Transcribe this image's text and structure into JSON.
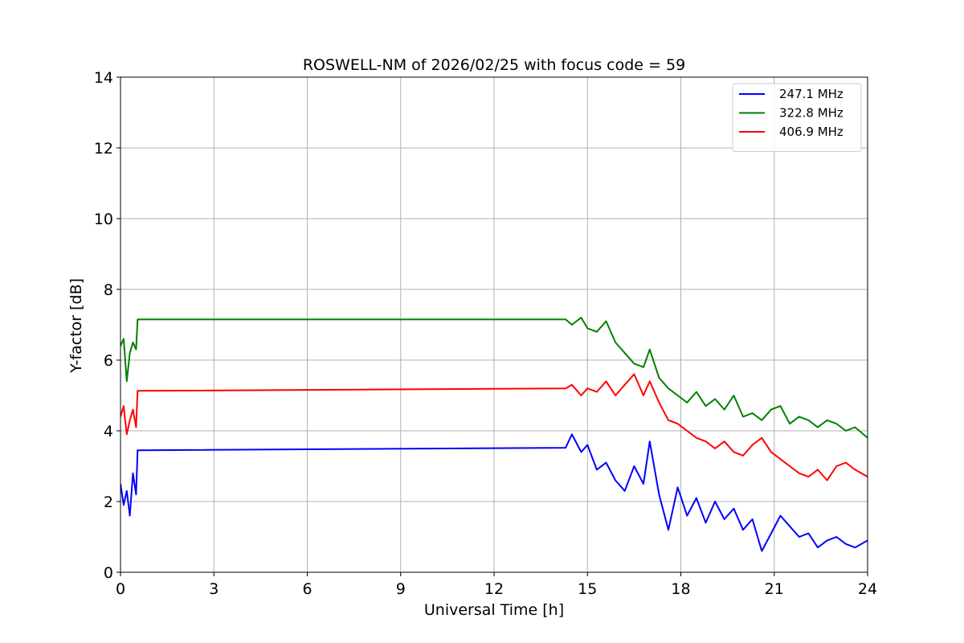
{
  "chart_data": {
    "type": "line",
    "title": "ROSWELL-NM of 2026/02/25 with focus code = 59",
    "xlabel": "Universal Time [h]",
    "ylabel": "Y-factor [dB]",
    "xlim": [
      0,
      24
    ],
    "ylim": [
      0,
      14
    ],
    "xticks": [
      0,
      3,
      6,
      9,
      12,
      15,
      18,
      21,
      24
    ],
    "yticks": [
      0,
      2,
      4,
      6,
      8,
      10,
      12,
      14
    ],
    "xtick_labels": [
      "0",
      "3",
      "6",
      "9",
      "12",
      "15",
      "18",
      "21",
      "24"
    ],
    "ytick_labels": [
      "0",
      "2",
      "4",
      "6",
      "8",
      "10",
      "12",
      "14"
    ],
    "grid": true,
    "legend_position": "top-right",
    "series": [
      {
        "name": "247.1 MHz",
        "color": "#0000ff",
        "x": [
          0.0,
          0.1,
          0.2,
          0.3,
          0.4,
          0.5,
          0.55,
          14.3,
          14.5,
          14.8,
          15.0,
          15.3,
          15.6,
          15.9,
          16.2,
          16.5,
          16.8,
          17.0,
          17.3,
          17.6,
          17.9,
          18.2,
          18.5,
          18.8,
          19.1,
          19.4,
          19.7,
          20.0,
          20.3,
          20.6,
          20.9,
          21.2,
          21.5,
          21.8,
          22.1,
          22.4,
          22.7,
          23.0,
          23.3,
          23.6,
          24.0
        ],
        "y": [
          2.5,
          1.9,
          2.3,
          1.6,
          2.8,
          2.2,
          3.45,
          3.52,
          3.9,
          3.4,
          3.6,
          2.9,
          3.1,
          2.6,
          2.3,
          3.0,
          2.5,
          3.7,
          2.2,
          1.2,
          2.4,
          1.6,
          2.1,
          1.4,
          2.0,
          1.5,
          1.8,
          1.2,
          1.5,
          0.6,
          1.1,
          1.6,
          1.3,
          1.0,
          1.1,
          0.7,
          0.9,
          1.0,
          0.8,
          0.7,
          0.9
        ]
      },
      {
        "name": "322.8 MHz",
        "color": "#008000",
        "x": [
          0.0,
          0.1,
          0.2,
          0.3,
          0.4,
          0.5,
          0.55,
          14.3,
          14.5,
          14.8,
          15.0,
          15.3,
          15.6,
          15.9,
          16.2,
          16.5,
          16.8,
          17.0,
          17.3,
          17.6,
          17.9,
          18.2,
          18.5,
          18.8,
          19.1,
          19.4,
          19.7,
          20.0,
          20.3,
          20.6,
          20.9,
          21.2,
          21.5,
          21.8,
          22.1,
          22.4,
          22.7,
          23.0,
          23.3,
          23.6,
          24.0
        ],
        "y": [
          6.4,
          6.6,
          5.4,
          6.2,
          6.5,
          6.3,
          7.15,
          7.15,
          7.0,
          7.2,
          6.9,
          6.8,
          7.1,
          6.5,
          6.2,
          5.9,
          5.8,
          6.3,
          5.5,
          5.2,
          5.0,
          4.8,
          5.1,
          4.7,
          4.9,
          4.6,
          5.0,
          4.4,
          4.5,
          4.3,
          4.6,
          4.7,
          4.2,
          4.4,
          4.3,
          4.1,
          4.3,
          4.2,
          4.0,
          4.1,
          3.8
        ]
      },
      {
        "name": "406.9 MHz",
        "color": "#ff0000",
        "x": [
          0.0,
          0.1,
          0.2,
          0.3,
          0.4,
          0.5,
          0.55,
          14.3,
          14.5,
          14.8,
          15.0,
          15.3,
          15.6,
          15.9,
          16.2,
          16.5,
          16.8,
          17.0,
          17.3,
          17.6,
          17.9,
          18.2,
          18.5,
          18.8,
          19.1,
          19.4,
          19.7,
          20.0,
          20.3,
          20.6,
          20.9,
          21.2,
          21.5,
          21.8,
          22.1,
          22.4,
          22.7,
          23.0,
          23.3,
          23.6,
          24.0
        ],
        "y": [
          4.4,
          4.7,
          3.9,
          4.3,
          4.6,
          4.1,
          5.13,
          5.2,
          5.3,
          5.0,
          5.2,
          5.1,
          5.4,
          5.0,
          5.3,
          5.6,
          5.0,
          5.4,
          4.8,
          4.3,
          4.2,
          4.0,
          3.8,
          3.7,
          3.5,
          3.7,
          3.4,
          3.3,
          3.6,
          3.8,
          3.4,
          3.2,
          3.0,
          2.8,
          2.7,
          2.9,
          2.6,
          3.0,
          3.1,
          2.9,
          2.7
        ]
      }
    ]
  }
}
